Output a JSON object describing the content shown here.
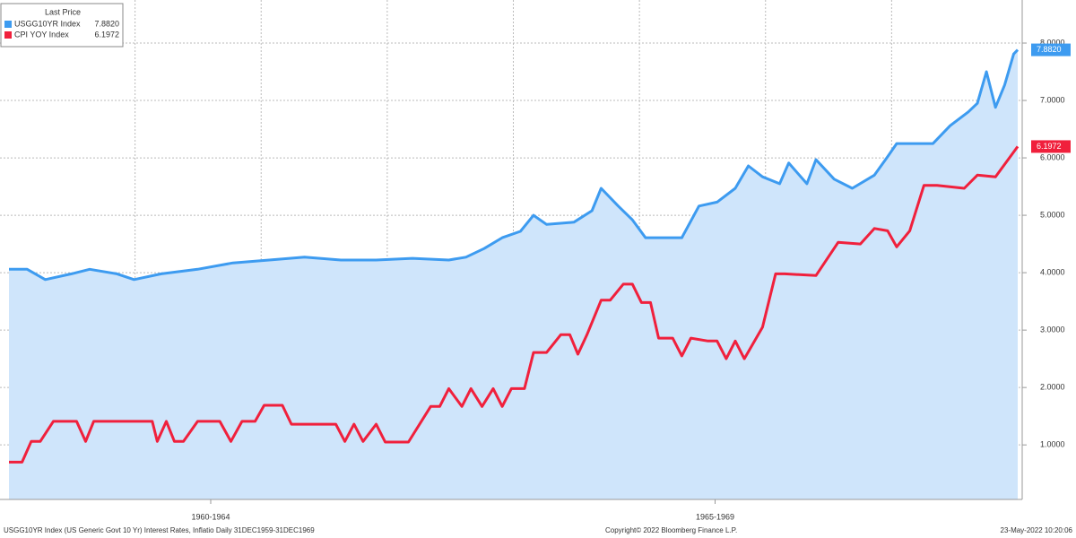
{
  "chart_data": {
    "type": "line",
    "legend_title": "Last Price",
    "footer_left": "USGG10YR Index (US Generic Govt 10 Yr) Interest Rates, Inflatio Daily 31DEC1959-31DEC1969",
    "footer_center": "Copyright© 2022 Bloomberg Finance L.P.",
    "footer_right": "23-May-2022 10:20:06",
    "xlim": [
      1960,
      1970
    ],
    "xticks": [
      {
        "value": 1962,
        "label": "1960-1964"
      },
      {
        "value": 1967,
        "label": "1965-1969"
      }
    ],
    "xgrid": [
      1961.25,
      1962.5,
      1963.75,
      1965,
      1966.25,
      1967.5,
      1968.75
    ],
    "ylim": [
      0.05,
      8.75
    ],
    "yticks": [
      {
        "value": 1,
        "label": "1.0000"
      },
      {
        "value": 2,
        "label": "2.0000"
      },
      {
        "value": 3,
        "label": "3.0000"
      },
      {
        "value": 4,
        "label": "4.0000"
      },
      {
        "value": 5,
        "label": "5.0000"
      },
      {
        "value": 6,
        "label": "6.0000"
      },
      {
        "value": 7,
        "label": "7.0000"
      },
      {
        "value": 8,
        "label": "8.0000"
      }
    ],
    "grid": true,
    "legend": "top-left",
    "series": [
      {
        "name": "USGG10YR Index",
        "color": "#3d9bf0",
        "area_color": "#cfe5fb",
        "x": [
          1960.0,
          1960.18,
          1960.36,
          1960.62,
          1960.8,
          1961.07,
          1961.24,
          1961.51,
          1961.87,
          1962.22,
          1962.58,
          1962.93,
          1963.29,
          1963.64,
          1964.0,
          1964.36,
          1964.53,
          1964.71,
          1964.89,
          1965.07,
          1965.2,
          1965.33,
          1965.6,
          1965.78,
          1965.87,
          1966.04,
          1966.18,
          1966.31,
          1966.49,
          1966.67,
          1966.84,
          1967.02,
          1967.2,
          1967.33,
          1967.47,
          1967.64,
          1967.73,
          1967.91,
          1968.0,
          1968.18,
          1968.36,
          1968.58,
          1968.71,
          1968.8,
          1968.98,
          1969.16,
          1969.33,
          1969.51,
          1969.6,
          1969.69,
          1969.78,
          1969.87,
          1969.96,
          1970.0
        ],
        "values": [
          4.06,
          4.06,
          3.88,
          3.98,
          4.06,
          3.98,
          3.88,
          3.98,
          4.06,
          4.17,
          4.22,
          4.27,
          4.22,
          4.22,
          4.25,
          4.22,
          4.27,
          4.42,
          4.61,
          4.72,
          5.0,
          4.84,
          4.88,
          5.08,
          5.47,
          5.16,
          4.92,
          4.61,
          4.61,
          4.61,
          5.16,
          5.23,
          5.47,
          5.86,
          5.67,
          5.55,
          5.91,
          5.55,
          5.97,
          5.63,
          5.47,
          5.7,
          6.02,
          6.25,
          6.25,
          6.25,
          6.56,
          6.8,
          6.95,
          7.5,
          6.88,
          7.27,
          7.81,
          7.882
        ],
        "value_labels": [
          null,
          null,
          null,
          null,
          null,
          null,
          null,
          null,
          null,
          null,
          null,
          null,
          null,
          null,
          null,
          null,
          null,
          null,
          null,
          null,
          null,
          null,
          null,
          null,
          null,
          null,
          null,
          null,
          null,
          null,
          null,
          null,
          null,
          null,
          null,
          null,
          null,
          null,
          null,
          null,
          null,
          null,
          null,
          null,
          null,
          null,
          null,
          null,
          null,
          null,
          null,
          null,
          null,
          "7.8820"
        ]
      },
      {
        "name": "CPI YOY Index",
        "color": "#f0203c",
        "x": [
          1960.0,
          1960.13,
          1960.22,
          1960.31,
          1960.44,
          1960.67,
          1960.76,
          1960.84,
          1961.42,
          1961.47,
          1961.56,
          1961.64,
          1961.73,
          1961.87,
          1962.09,
          1962.2,
          1962.31,
          1962.44,
          1962.53,
          1962.71,
          1962.8,
          1963.24,
          1963.33,
          1963.42,
          1963.51,
          1963.64,
          1963.73,
          1963.96,
          1964.18,
          1964.27,
          1964.36,
          1964.49,
          1964.58,
          1964.69,
          1964.8,
          1964.89,
          1964.98,
          1965.11,
          1965.2,
          1965.33,
          1965.47,
          1965.56,
          1965.64,
          1965.73,
          1965.87,
          1965.96,
          1966.09,
          1966.18,
          1966.27,
          1966.36,
          1966.44,
          1966.58,
          1966.67,
          1966.76,
          1966.93,
          1967.02,
          1967.11,
          1967.2,
          1967.29,
          1967.47,
          1967.6,
          1967.69,
          1968.0,
          1968.22,
          1968.44,
          1968.58,
          1968.71,
          1968.8,
          1968.93,
          1969.07,
          1969.2,
          1969.47,
          1969.6,
          1969.78,
          1970.0
        ],
        "values": [
          0.7,
          0.7,
          1.06,
          1.06,
          1.41,
          1.41,
          1.06,
          1.41,
          1.41,
          1.06,
          1.41,
          1.06,
          1.06,
          1.41,
          1.41,
          1.06,
          1.41,
          1.41,
          1.69,
          1.69,
          1.36,
          1.36,
          1.06,
          1.36,
          1.06,
          1.36,
          1.05,
          1.05,
          1.67,
          1.67,
          1.98,
          1.67,
          1.98,
          1.67,
          1.98,
          1.67,
          1.98,
          1.98,
          2.61,
          2.61,
          2.92,
          2.92,
          2.58,
          2.92,
          3.52,
          3.52,
          3.8,
          3.8,
          3.48,
          3.48,
          2.86,
          2.86,
          2.55,
          2.86,
          2.81,
          2.81,
          2.5,
          2.81,
          2.5,
          3.05,
          3.98,
          3.98,
          3.95,
          4.53,
          4.5,
          4.77,
          4.73,
          4.45,
          4.73,
          5.52,
          5.52,
          5.47,
          5.7,
          5.67,
          6.1972
        ],
        "value_labels": [
          null,
          null,
          null,
          null,
          null,
          null,
          null,
          null,
          null,
          null,
          null,
          null,
          null,
          null,
          null,
          null,
          null,
          null,
          null,
          null,
          null,
          null,
          null,
          null,
          null,
          null,
          null,
          null,
          null,
          null,
          null,
          null,
          null,
          null,
          null,
          null,
          null,
          null,
          null,
          null,
          null,
          null,
          null,
          null,
          null,
          null,
          null,
          null,
          null,
          null,
          null,
          null,
          null,
          null,
          null,
          null,
          null,
          null,
          null,
          null,
          null,
          null,
          null,
          null,
          null,
          null,
          null,
          null,
          null,
          null,
          null,
          null,
          null,
          null,
          "6.1972"
        ]
      }
    ]
  }
}
